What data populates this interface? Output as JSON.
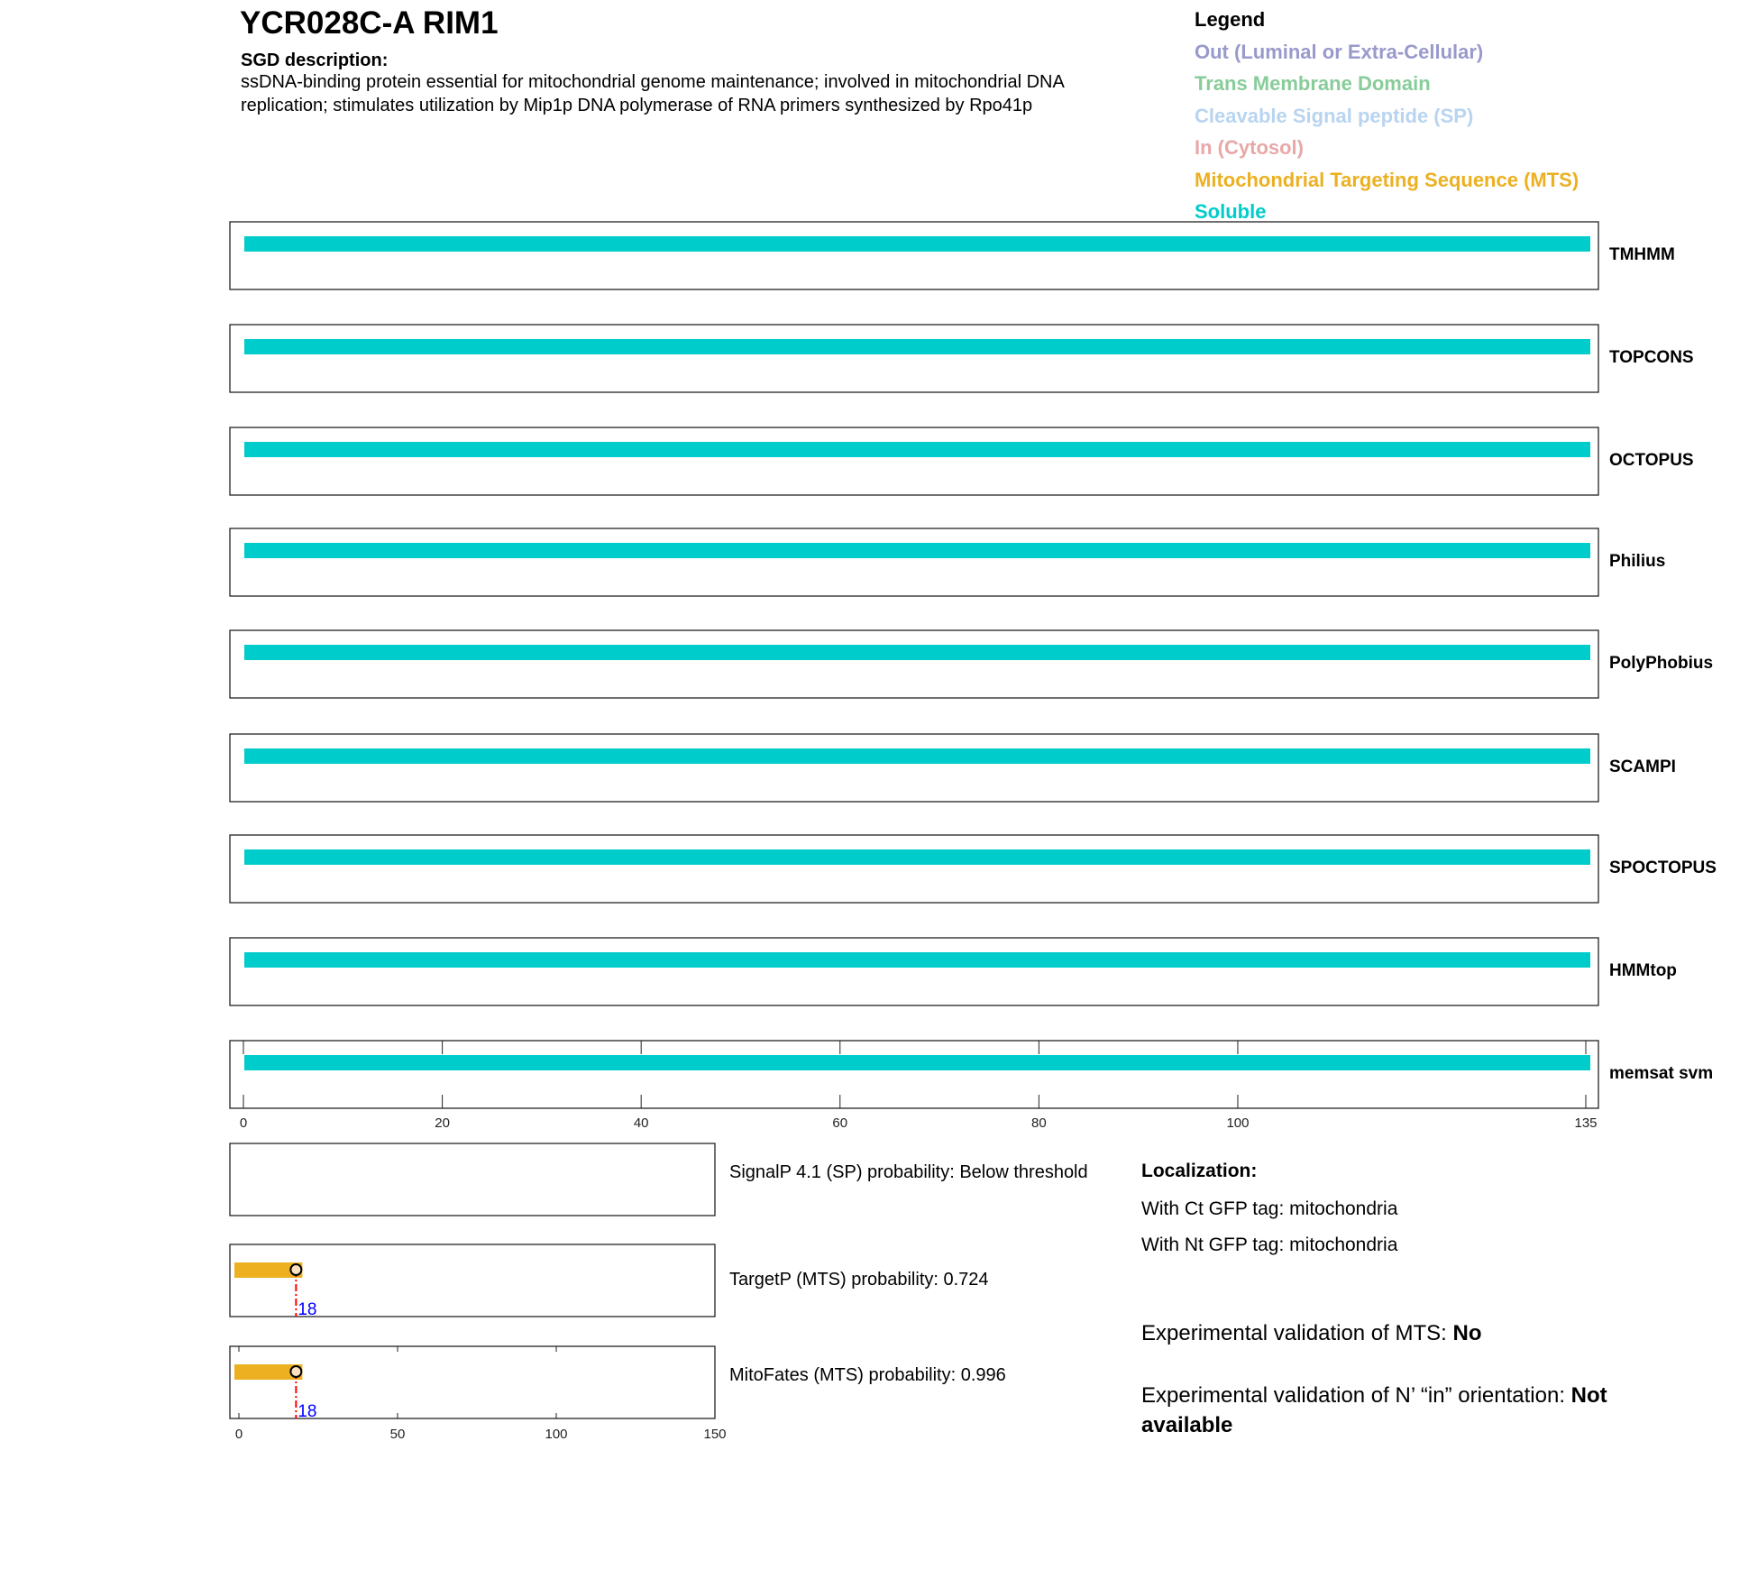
{
  "header": {
    "title": "YCR028C-A  RIM1",
    "sgd_label": "SGD description:",
    "sgd_text": "ssDNA-binding protein essential for mitochondrial genome maintenance; involved in mitochondrial DNA replication; stimulates utilization by Mip1p DNA polymerase of RNA primers synthesized by Rpo41p"
  },
  "legend": {
    "title": "Legend",
    "items": [
      {
        "label": "Out (Luminal or Extra-Cellular)",
        "color": "#9999cc"
      },
      {
        "label": "Trans Membrane Domain",
        "color": "#88cc99"
      },
      {
        "label": "Cleavable Signal peptide (SP)",
        "color": "#b8d4f0"
      },
      {
        "label": "In (Cytosol)",
        "color": "#e8a8a8"
      },
      {
        "label": "Mitochondrial Targeting Sequence (MTS)",
        "color": "#ecb020"
      },
      {
        "label": "Soluble",
        "color": "#00cccc"
      }
    ]
  },
  "chart_data": [
    {
      "type": "bar",
      "xlim": [
        0,
        135
      ],
      "xticks": [
        "0",
        "20",
        "40",
        "60",
        "80",
        "100",
        "135"
      ],
      "protein_length": 135,
      "tracks": [
        {
          "name": "TMHMM",
          "segments": [
            {
              "start": 0,
              "end": 135,
              "class": "Soluble"
            }
          ]
        },
        {
          "name": "TOPCONS",
          "segments": [
            {
              "start": 0,
              "end": 135,
              "class": "Soluble"
            }
          ]
        },
        {
          "name": "OCTOPUS",
          "segments": [
            {
              "start": 0,
              "end": 135,
              "class": "Soluble"
            }
          ]
        },
        {
          "name": "Philius",
          "segments": [
            {
              "start": 0,
              "end": 135,
              "class": "Soluble"
            }
          ]
        },
        {
          "name": "PolyPhobius",
          "segments": [
            {
              "start": 0,
              "end": 135,
              "class": "Soluble"
            }
          ]
        },
        {
          "name": "SCAMPI",
          "segments": [
            {
              "start": 0,
              "end": 135,
              "class": "Soluble"
            }
          ]
        },
        {
          "name": "SPOCTOPUS",
          "segments": [
            {
              "start": 0,
              "end": 135,
              "class": "Soluble"
            }
          ]
        },
        {
          "name": "HMMtop",
          "segments": [
            {
              "start": 0,
              "end": 135,
              "class": "Soluble"
            }
          ]
        },
        {
          "name": "memsat svm",
          "segments": [
            {
              "start": 0,
              "end": 135,
              "class": "Soluble"
            }
          ]
        }
      ]
    },
    {
      "type": "bar",
      "xlim": [
        0,
        150
      ],
      "xticks": [
        "0",
        "50",
        "100",
        "150"
      ],
      "tracks": [
        {
          "name": "SignalP",
          "label": "SignalP 4.1 (SP) probability: Below threshold",
          "segments": []
        },
        {
          "name": "TargetP",
          "label": "TargetP (MTS) probability: 0.724",
          "segments": [
            {
              "start": 0,
              "end": 20,
              "class": "Mitochondrial Targeting Sequence (MTS)"
            }
          ],
          "cleavage": 18,
          "cleavage_label": "18"
        },
        {
          "name": "MitoFates",
          "label": "MitoFates (MTS) probability: 0.996",
          "segments": [
            {
              "start": 0,
              "end": 20,
              "class": "Mitochondrial Targeting Sequence (MTS)"
            }
          ],
          "cleavage": 18,
          "cleavage_label": "18"
        }
      ]
    }
  ],
  "localization": {
    "title": "Localization:",
    "ct": "With Ct GFP tag: mitochondria",
    "nt": "With Nt GFP tag: mitochondria"
  },
  "validation": {
    "mts_label": "Experimental validation of MTS: ",
    "mts_value": "No",
    "orient_label": "Experimental validation of N’ “in” orientation: ",
    "orient_value": "Not available"
  }
}
